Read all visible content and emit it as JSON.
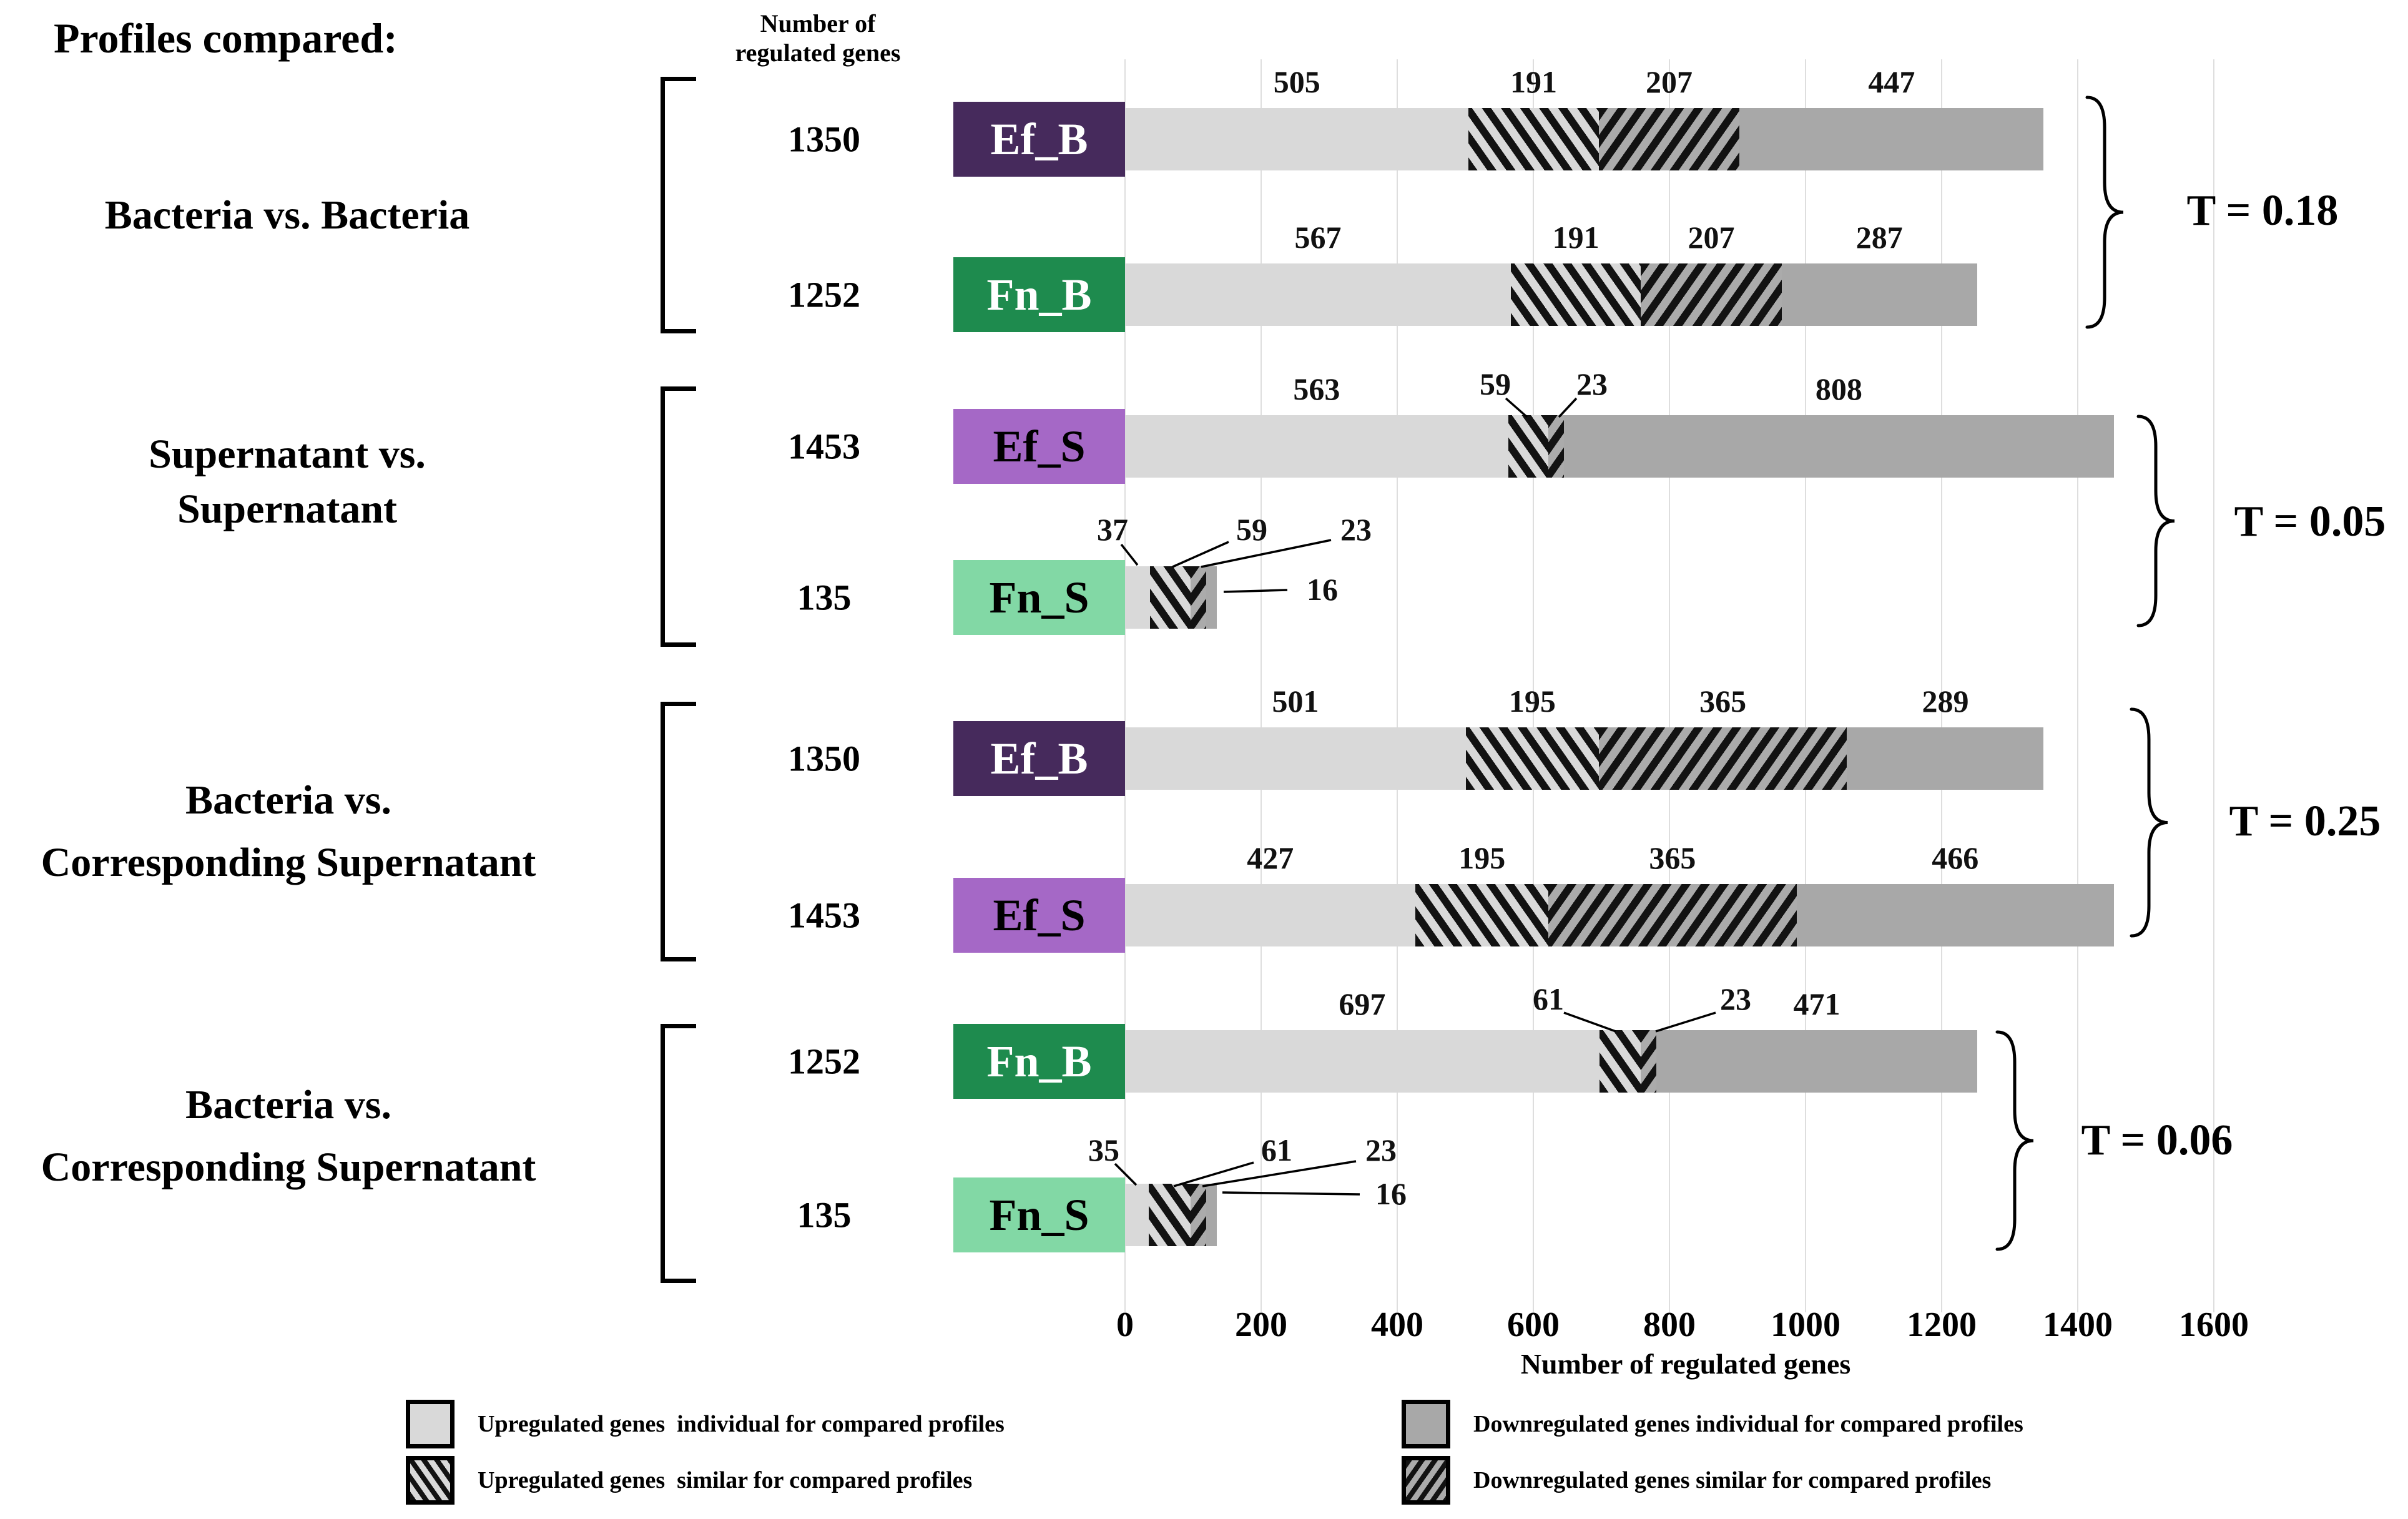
{
  "page": {
    "title": "Profiles compared:",
    "column_header_line1": "Number of",
    "column_header_line2": "regulated genes"
  },
  "axis": {
    "label": "Number of regulated genes",
    "ticks": [
      "0",
      "200",
      "400",
      "600",
      "800",
      "1000",
      "1200",
      "1400",
      "1600"
    ],
    "tick_values": [
      0,
      200,
      400,
      600,
      800,
      1000,
      1200,
      1400,
      1600
    ],
    "max": 1600
  },
  "colors": {
    "up_individual": "#d9d9d9",
    "up_similar_bg": "#d9d9d9",
    "down_similar_bg": "#ababab",
    "down_individual": "#a8a8a8",
    "hatch": "#121212",
    "tag_Ef_B": "#462a5c",
    "tag_Fn_B": "#1e8b4e",
    "tag_Ef_S": "#a568c6",
    "tag_Fn_S": "#82d8a5",
    "gridline": "#dedede"
  },
  "legend": [
    {
      "swatch": "up_individual",
      "label": "Upregulated genes  individual for compared profiles"
    },
    {
      "swatch": "up_similar",
      "label": "Upregulated genes  similar for compared profiles"
    },
    {
      "swatch": "down_individual",
      "label": "Downregulated genes individual for compared profiles"
    },
    {
      "swatch": "down_similar",
      "label": "Downregulated genes similar for compared profiles"
    }
  ],
  "chart_data": {
    "type": "bar",
    "orientation": "horizontal",
    "xlabel": "Number of regulated genes",
    "xlim": [
      0,
      1600
    ],
    "grid": true,
    "segment_order": [
      "up_individual",
      "up_similar",
      "down_similar",
      "down_individual"
    ],
    "segment_meaning": {
      "up_individual": "Upregulated genes individual for compared profiles",
      "up_similar": "Upregulated genes similar for compared profiles",
      "down_similar": "Downregulated genes similar for compared profiles",
      "down_individual": "Downregulated genes individual for compared profiles"
    },
    "groups": [
      {
        "label_lines": [
          "Bacteria vs. Bacteria"
        ],
        "t_label": "T = 0.18",
        "rows": [
          {
            "name": "Ef_B",
            "total": "1350",
            "tag": "tag_Ef_B",
            "tag_text": "#ffffff",
            "segments": [
              {
                "type": "up_individual",
                "value": 505
              },
              {
                "type": "up_similar",
                "value": 191
              },
              {
                "type": "down_similar",
                "value": 207
              },
              {
                "type": "down_individual",
                "value": 447
              }
            ]
          },
          {
            "name": "Fn_B",
            "total": "1252",
            "tag": "tag_Fn_B",
            "tag_text": "#ffffff",
            "segments": [
              {
                "type": "up_individual",
                "value": 567
              },
              {
                "type": "up_similar",
                "value": 191
              },
              {
                "type": "down_similar",
                "value": 207
              },
              {
                "type": "down_individual",
                "value": 287
              }
            ]
          }
        ]
      },
      {
        "label_lines": [
          "Supernatant vs.",
          "Supernatant"
        ],
        "t_label": "T = 0.05",
        "rows": [
          {
            "name": "Ef_S",
            "total": "1453",
            "tag": "tag_Ef_S",
            "tag_text": "#000000",
            "segments": [
              {
                "type": "up_individual",
                "value": 563
              },
              {
                "type": "up_similar",
                "value": 59
              },
              {
                "type": "down_similar",
                "value": 23
              },
              {
                "type": "down_individual",
                "value": 808
              }
            ]
          },
          {
            "name": "Fn_S",
            "total": "135",
            "tag": "tag_Fn_S",
            "tag_text": "#000000",
            "segments": [
              {
                "type": "up_individual",
                "value": 37
              },
              {
                "type": "up_similar",
                "value": 59
              },
              {
                "type": "down_similar",
                "value": 23
              },
              {
                "type": "down_individual",
                "value": 16
              }
            ]
          }
        ]
      },
      {
        "label_lines": [
          "Bacteria vs.",
          "Corresponding Supernatant"
        ],
        "t_label": "T = 0.25",
        "rows": [
          {
            "name": "Ef_B",
            "total": "1350",
            "tag": "tag_Ef_B",
            "tag_text": "#ffffff",
            "segments": [
              {
                "type": "up_individual",
                "value": 501
              },
              {
                "type": "up_similar",
                "value": 195
              },
              {
                "type": "down_similar",
                "value": 365
              },
              {
                "type": "down_individual",
                "value": 289
              }
            ]
          },
          {
            "name": "Ef_S",
            "total": "1453",
            "tag": "tag_Ef_S",
            "tag_text": "#000000",
            "segments": [
              {
                "type": "up_individual",
                "value": 427
              },
              {
                "type": "up_similar",
                "value": 195
              },
              {
                "type": "down_similar",
                "value": 365
              },
              {
                "type": "down_individual",
                "value": 466
              }
            ]
          }
        ]
      },
      {
        "label_lines": [
          "Bacteria vs.",
          "Corresponding Supernatant"
        ],
        "t_label": "T = 0.06",
        "rows": [
          {
            "name": "Fn_B",
            "total": "1252",
            "tag": "tag_Fn_B",
            "tag_text": "#ffffff",
            "segments": [
              {
                "type": "up_individual",
                "value": 697
              },
              {
                "type": "up_similar",
                "value": 61
              },
              {
                "type": "down_similar",
                "value": 23
              },
              {
                "type": "down_individual",
                "value": 471
              }
            ]
          },
          {
            "name": "Fn_S",
            "total": "135",
            "tag": "tag_Fn_S",
            "tag_text": "#000000",
            "segments": [
              {
                "type": "up_individual",
                "value": 35
              },
              {
                "type": "up_similar",
                "value": 61
              },
              {
                "type": "down_similar",
                "value": 23
              },
              {
                "type": "down_individual",
                "value": 16
              }
            ]
          }
        ]
      }
    ]
  }
}
